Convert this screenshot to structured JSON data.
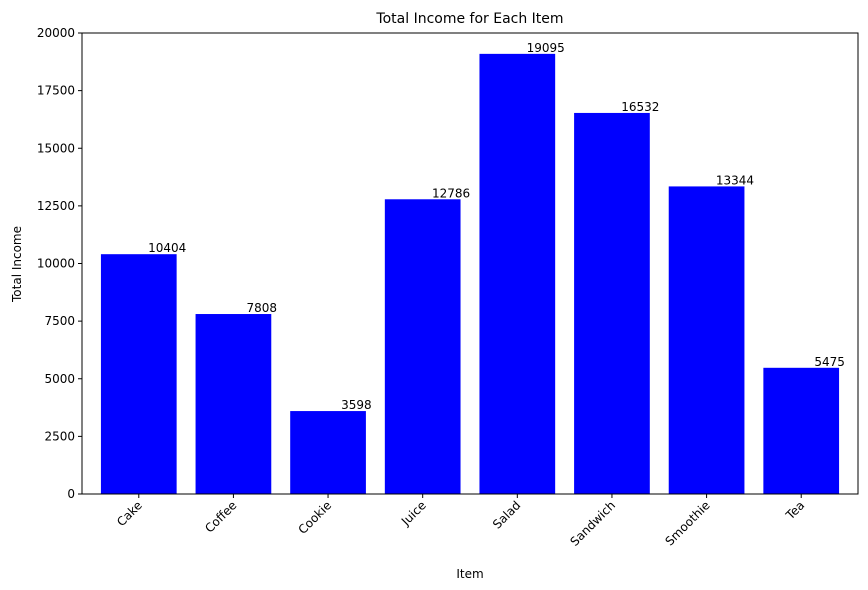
{
  "chart_data": {
    "type": "bar",
    "title": "Total Income for Each Item",
    "xlabel": "Item",
    "ylabel": "Total Income",
    "categories": [
      "Cake",
      "Coffee",
      "Cookie",
      "Juice",
      "Salad",
      "Sandwich",
      "Smoothie",
      "Tea"
    ],
    "values": [
      10404,
      7808,
      3598,
      12786,
      19095,
      16532,
      13344,
      5475
    ],
    "ylim": [
      0,
      20000
    ],
    "yticks": [
      0,
      2500,
      5000,
      7500,
      10000,
      12500,
      15000,
      17500,
      20000
    ],
    "bar_color": "#0000ff",
    "grid": false,
    "x_tick_rotation": "45 degrees"
  }
}
